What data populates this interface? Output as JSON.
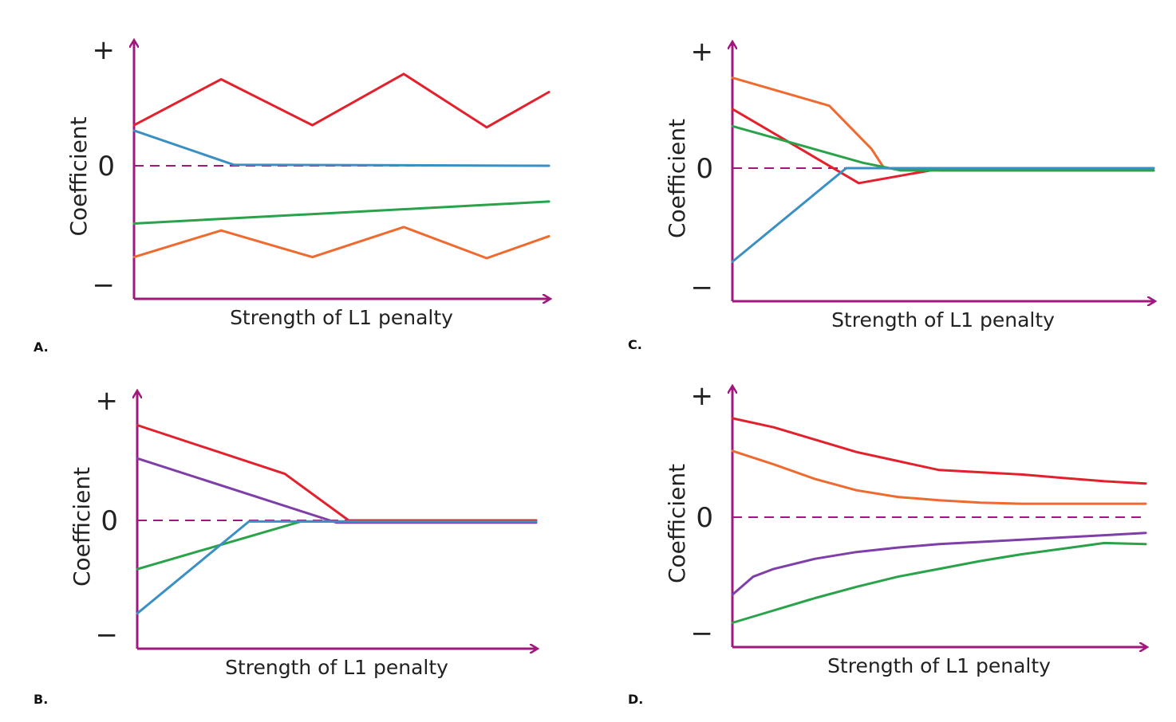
{
  "chart_data": [
    {
      "panel": "A.",
      "type": "line",
      "xlabel": "Strength of L1 penalty",
      "ylabel": "Coefficient",
      "yticks": [
        "+",
        "0",
        "−"
      ],
      "ylim": [
        -1,
        1
      ],
      "xlim": [
        0,
        1
      ],
      "zero_line": "dashed",
      "series": [
        {
          "color": "#e3202b",
          "points": [
            [
              0,
              0.38
            ],
            [
              0.21,
              0.81
            ],
            [
              0.43,
              0.38
            ],
            [
              0.65,
              0.86
            ],
            [
              0.85,
              0.36
            ],
            [
              1,
              0.69
            ]
          ]
        },
        {
          "color": "#3a8fc5",
          "points": [
            [
              0,
              0.33
            ],
            [
              0.24,
              0.01
            ],
            [
              1,
              0.0
            ]
          ]
        },
        {
          "color": "#2aa24a",
          "points": [
            [
              0,
              -0.5
            ],
            [
              1,
              -0.31
            ]
          ]
        },
        {
          "color": "#ef6a2f",
          "points": [
            [
              0,
              -0.79
            ],
            [
              0.21,
              -0.56
            ],
            [
              0.43,
              -0.79
            ],
            [
              0.65,
              -0.53
            ],
            [
              0.85,
              -0.8
            ],
            [
              1,
              -0.61
            ]
          ]
        }
      ]
    },
    {
      "panel": "C.",
      "type": "line",
      "xlabel": "Strength of L1 penalty",
      "ylabel": "Coefficient",
      "yticks": [
        "+",
        "0",
        "−"
      ],
      "ylim": [
        -1,
        1
      ],
      "xlim": [
        0,
        1
      ],
      "zero_line": "dashed",
      "series": [
        {
          "color": "#ef6a2f",
          "points": [
            [
              0,
              0.84
            ],
            [
              0.23,
              0.58
            ],
            [
              0.33,
              0.18
            ],
            [
              0.36,
              0.0
            ],
            [
              0.5,
              -0.02
            ],
            [
              1,
              -0.02
            ]
          ]
        },
        {
          "color": "#e3202b",
          "points": [
            [
              0,
              0.55
            ],
            [
              0.3,
              -0.13
            ],
            [
              0.5,
              0.0
            ],
            [
              1,
              0.0
            ]
          ]
        },
        {
          "color": "#2aa24a",
          "points": [
            [
              0,
              0.39
            ],
            [
              0.31,
              0.05
            ],
            [
              0.4,
              -0.02
            ],
            [
              1,
              -0.02
            ]
          ]
        },
        {
          "color": "#3a8fc5",
          "points": [
            [
              0,
              -0.81
            ],
            [
              0.27,
              0.0
            ],
            [
              1,
              0.0
            ]
          ]
        }
      ]
    },
    {
      "panel": "B.",
      "type": "line",
      "xlabel": "Strength of L1 penalty",
      "ylabel": "Coefficient",
      "yticks": [
        "+",
        "0",
        "−"
      ],
      "ylim": [
        -1,
        1
      ],
      "xlim": [
        0,
        1
      ],
      "zero_line": "dashed",
      "series": [
        {
          "color": "#e3202b",
          "points": [
            [
              0,
              0.86
            ],
            [
              0.37,
              0.42
            ],
            [
              0.53,
              0.0
            ],
            [
              1,
              0.0
            ]
          ]
        },
        {
          "color": "#7f3fa9",
          "points": [
            [
              0,
              0.56
            ],
            [
              0.5,
              -0.02
            ],
            [
              1,
              -0.02
            ]
          ]
        },
        {
          "color": "#2aa24a",
          "points": [
            [
              0,
              -0.44
            ],
            [
              0.41,
              -0.01
            ],
            [
              1,
              -0.01
            ]
          ]
        },
        {
          "color": "#3a8fc5",
          "points": [
            [
              0,
              -0.84
            ],
            [
              0.28,
              -0.01
            ],
            [
              1,
              -0.01
            ]
          ]
        }
      ]
    },
    {
      "panel": "D.",
      "type": "line",
      "xlabel": "Strength of L1 penalty",
      "ylabel": "Coefficient",
      "yticks": [
        "+",
        "0",
        "−"
      ],
      "ylim": [
        -1,
        1
      ],
      "xlim": [
        0,
        1
      ],
      "zero_line": "dashed",
      "series": [
        {
          "color": "#e3202b",
          "points": [
            [
              0,
              0.88
            ],
            [
              0.1,
              0.8
            ],
            [
              0.2,
              0.69
            ],
            [
              0.3,
              0.58
            ],
            [
              0.4,
              0.5
            ],
            [
              0.5,
              0.42
            ],
            [
              0.6,
              0.4
            ],
            [
              0.7,
              0.38
            ],
            [
              0.8,
              0.35
            ],
            [
              0.9,
              0.32
            ],
            [
              1,
              0.3
            ]
          ]
        },
        {
          "color": "#ef6a2f",
          "points": [
            [
              0,
              0.59
            ],
            [
              0.1,
              0.47
            ],
            [
              0.2,
              0.34
            ],
            [
              0.3,
              0.24
            ],
            [
              0.4,
              0.18
            ],
            [
              0.5,
              0.15
            ],
            [
              0.6,
              0.13
            ],
            [
              0.7,
              0.12
            ],
            [
              0.8,
              0.12
            ],
            [
              0.9,
              0.12
            ],
            [
              1,
              0.12
            ]
          ]
        },
        {
          "color": "#7f3fa9",
          "points": [
            [
              0,
              -0.69
            ],
            [
              0.05,
              -0.53
            ],
            [
              0.1,
              -0.46
            ],
            [
              0.2,
              -0.37
            ],
            [
              0.3,
              -0.31
            ],
            [
              0.4,
              -0.27
            ],
            [
              0.5,
              -0.24
            ],
            [
              0.6,
              -0.22
            ],
            [
              0.7,
              -0.2
            ],
            [
              0.8,
              -0.18
            ],
            [
              0.9,
              -0.16
            ],
            [
              1,
              -0.14
            ]
          ]
        },
        {
          "color": "#2aa24a",
          "points": [
            [
              0,
              -0.94
            ],
            [
              0.1,
              -0.83
            ],
            [
              0.2,
              -0.72
            ],
            [
              0.3,
              -0.62
            ],
            [
              0.4,
              -0.53
            ],
            [
              0.5,
              -0.46
            ],
            [
              0.6,
              -0.39
            ],
            [
              0.7,
              -0.33
            ],
            [
              0.8,
              -0.28
            ],
            [
              0.9,
              -0.23
            ],
            [
              1,
              -0.24
            ]
          ]
        }
      ]
    }
  ],
  "colors": {
    "axis": "#a0187d",
    "zero_line": "#a0187d"
  }
}
